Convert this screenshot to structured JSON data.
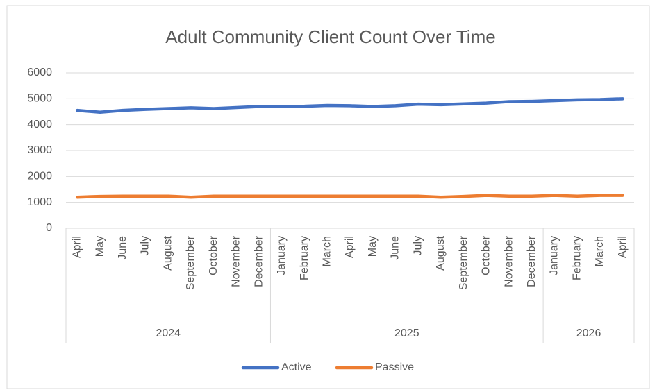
{
  "chart_data": {
    "type": "line",
    "title": "Adult Community Client Count Over Time",
    "category_groups": [
      {
        "label": "2024",
        "categories": [
          "April",
          "May",
          "June",
          "July",
          "August",
          "September",
          "October",
          "November",
          "December"
        ]
      },
      {
        "label": "2025",
        "categories": [
          "January",
          "February",
          "March",
          "April",
          "May",
          "June",
          "July",
          "August",
          "September",
          "October",
          "November",
          "December"
        ]
      },
      {
        "label": "2026",
        "categories": [
          "January",
          "February",
          "March",
          "April"
        ]
      }
    ],
    "series": [
      {
        "name": "Active",
        "color": "#4472c4",
        "values": [
          4550,
          4480,
          4550,
          4590,
          4620,
          4650,
          4620,
          4660,
          4700,
          4700,
          4710,
          4740,
          4730,
          4700,
          4730,
          4790,
          4770,
          4800,
          4830,
          4890,
          4900,
          4930,
          4960,
          4970,
          5000
        ]
      },
      {
        "name": "Passive",
        "color": "#ed7d31",
        "values": [
          1200,
          1230,
          1240,
          1240,
          1240,
          1200,
          1240,
          1240,
          1240,
          1240,
          1240,
          1240,
          1240,
          1240,
          1240,
          1240,
          1200,
          1230,
          1270,
          1240,
          1240,
          1270,
          1240,
          1270,
          1270
        ]
      }
    ],
    "ylim": [
      0,
      6000
    ],
    "yticks": [
      0,
      1000,
      2000,
      3000,
      4000,
      5000,
      6000
    ],
    "grid": true,
    "legend": "bottom"
  }
}
